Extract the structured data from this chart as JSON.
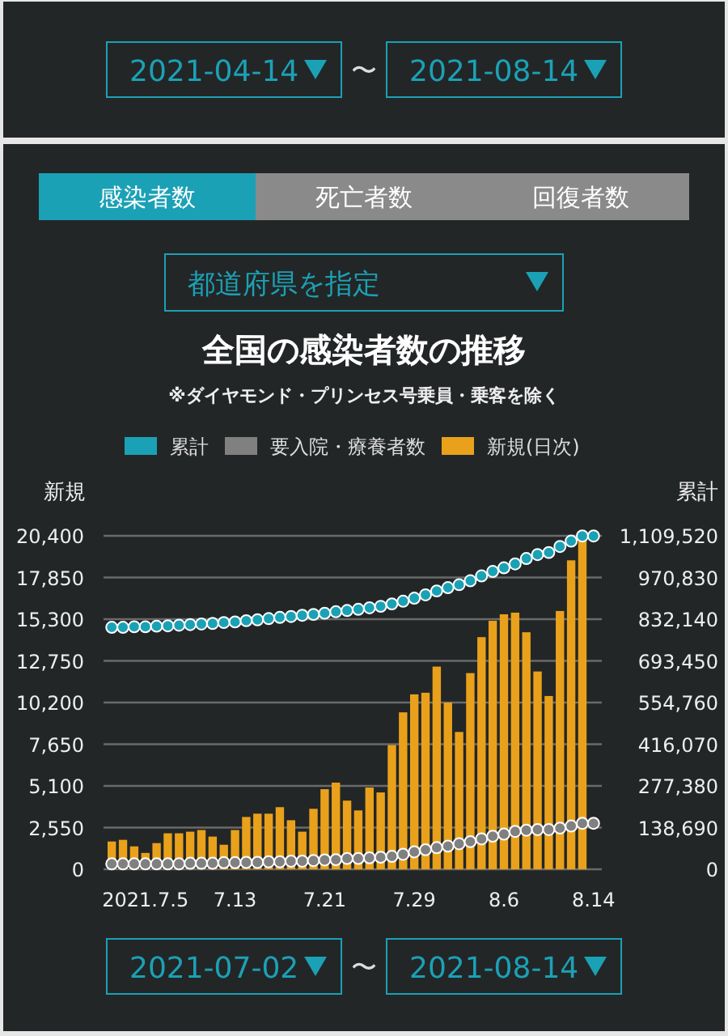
{
  "chart_data": {
    "type": "bar",
    "title": "全国の感染者数の推移",
    "subtitle": "※ダイヤモンド・プリンセス号乗員・乗客を除く",
    "ylabel": "新規",
    "y2label": "累計",
    "annotations": [
      "2021-04-14",
      "〜",
      "2021-08-14",
      "感染者数",
      "死亡者数",
      "回復者数",
      "都道府県を指定",
      "2021-07-02",
      "〜",
      "2021-08-14"
    ],
    "categories": [
      null,
      null,
      null,
      "2021.7.5",
      null,
      null,
      null,
      null,
      null,
      null,
      null,
      "7.13",
      null,
      null,
      null,
      null,
      null,
      null,
      null,
      "7.21",
      null,
      null,
      null,
      null,
      null,
      null,
      null,
      "7.29",
      null,
      null,
      null,
      null,
      null,
      null,
      null,
      "8.6",
      null,
      null,
      null,
      null,
      null,
      null,
      null,
      "8.14"
    ],
    "series": [
      {
        "name": "累計",
        "type": "scatter",
        "axis": "y2",
        "color": "#1ba1b5",
        "values": [
          805000,
          805000,
          807000,
          807000,
          809000,
          810000,
          812000,
          814000,
          816000,
          818000,
          821000,
          823000,
          827000,
          830000,
          834000,
          838000,
          841000,
          845000,
          848000,
          852000,
          857000,
          861000,
          865000,
          870000,
          875000,
          883000,
          892000,
          902000,
          913000,
          926000,
          937000,
          947000,
          960000,
          976000,
          991000,
          1003000,
          1016000,
          1034000,
          1047000,
          1054000,
          1074000,
          1092000,
          1109000,
          1109000
        ]
      },
      {
        "name": "要入院・療養者数",
        "type": "scatter",
        "axis": "y2",
        "color": "#808080",
        "values": [
          18000,
          18000,
          18000,
          18000,
          18000,
          18000,
          18000,
          20000,
          20000,
          20000,
          22000,
          22000,
          23000,
          23000,
          25000,
          25000,
          27000,
          27000,
          29000,
          31000,
          32000,
          36000,
          36000,
          38000,
          40000,
          43000,
          50000,
          58000,
          65000,
          72000,
          77000,
          85000,
          92000,
          101000,
          110000,
          117000,
          126000,
          130000,
          132000,
          132000,
          137000,
          144000,
          153000,
          153000
        ]
      },
      {
        "name": "新規(日次)",
        "color": "#e9a11b",
        "values": [
          1700,
          1800,
          1400,
          1000,
          1600,
          2200,
          2200,
          2300,
          2400,
          2000,
          1500,
          2400,
          3200,
          3400,
          3400,
          3800,
          3000,
          2300,
          3700,
          4900,
          5300,
          4200,
          3600,
          5000,
          4700,
          7600,
          9600,
          10700,
          10800,
          12400,
          10200,
          8400,
          12000,
          14200,
          15200,
          15600,
          15700,
          14500,
          12100,
          10600,
          15800,
          18900,
          20200,
          null
        ]
      }
    ],
    "ylim": [
      0,
      20400
    ],
    "yticks": [
      0,
      {
        "value": 2550,
        "label": "2,550"
      },
      {
        "value": 5100,
        "label": "5,100"
      },
      {
        "value": 7650,
        "label": "7,650"
      },
      {
        "value": 10200,
        "label": "10,200"
      },
      {
        "value": 12750,
        "label": "12,750"
      },
      {
        "value": 15300,
        "label": "15,300"
      },
      {
        "value": 17850,
        "label": "17,850"
      },
      {
        "value": 20400,
        "label": "20,400"
      }
    ],
    "y2lim": [
      0,
      1109520
    ],
    "y2ticks": [
      0,
      {
        "value": 138690,
        "label": "138,690"
      },
      {
        "value": 277380,
        "label": "277,380"
      },
      {
        "value": 416070,
        "label": "416,070"
      },
      {
        "value": 554760,
        "label": "554,760"
      },
      {
        "value": 693450,
        "label": "693,450"
      },
      {
        "value": 832140,
        "label": "832,140"
      },
      {
        "value": 970830,
        "label": "970,830"
      },
      {
        "value": 1109520,
        "label": "1,109,520"
      }
    ],
    "grid": "y",
    "legend": "top",
    "marker": "circle"
  }
}
